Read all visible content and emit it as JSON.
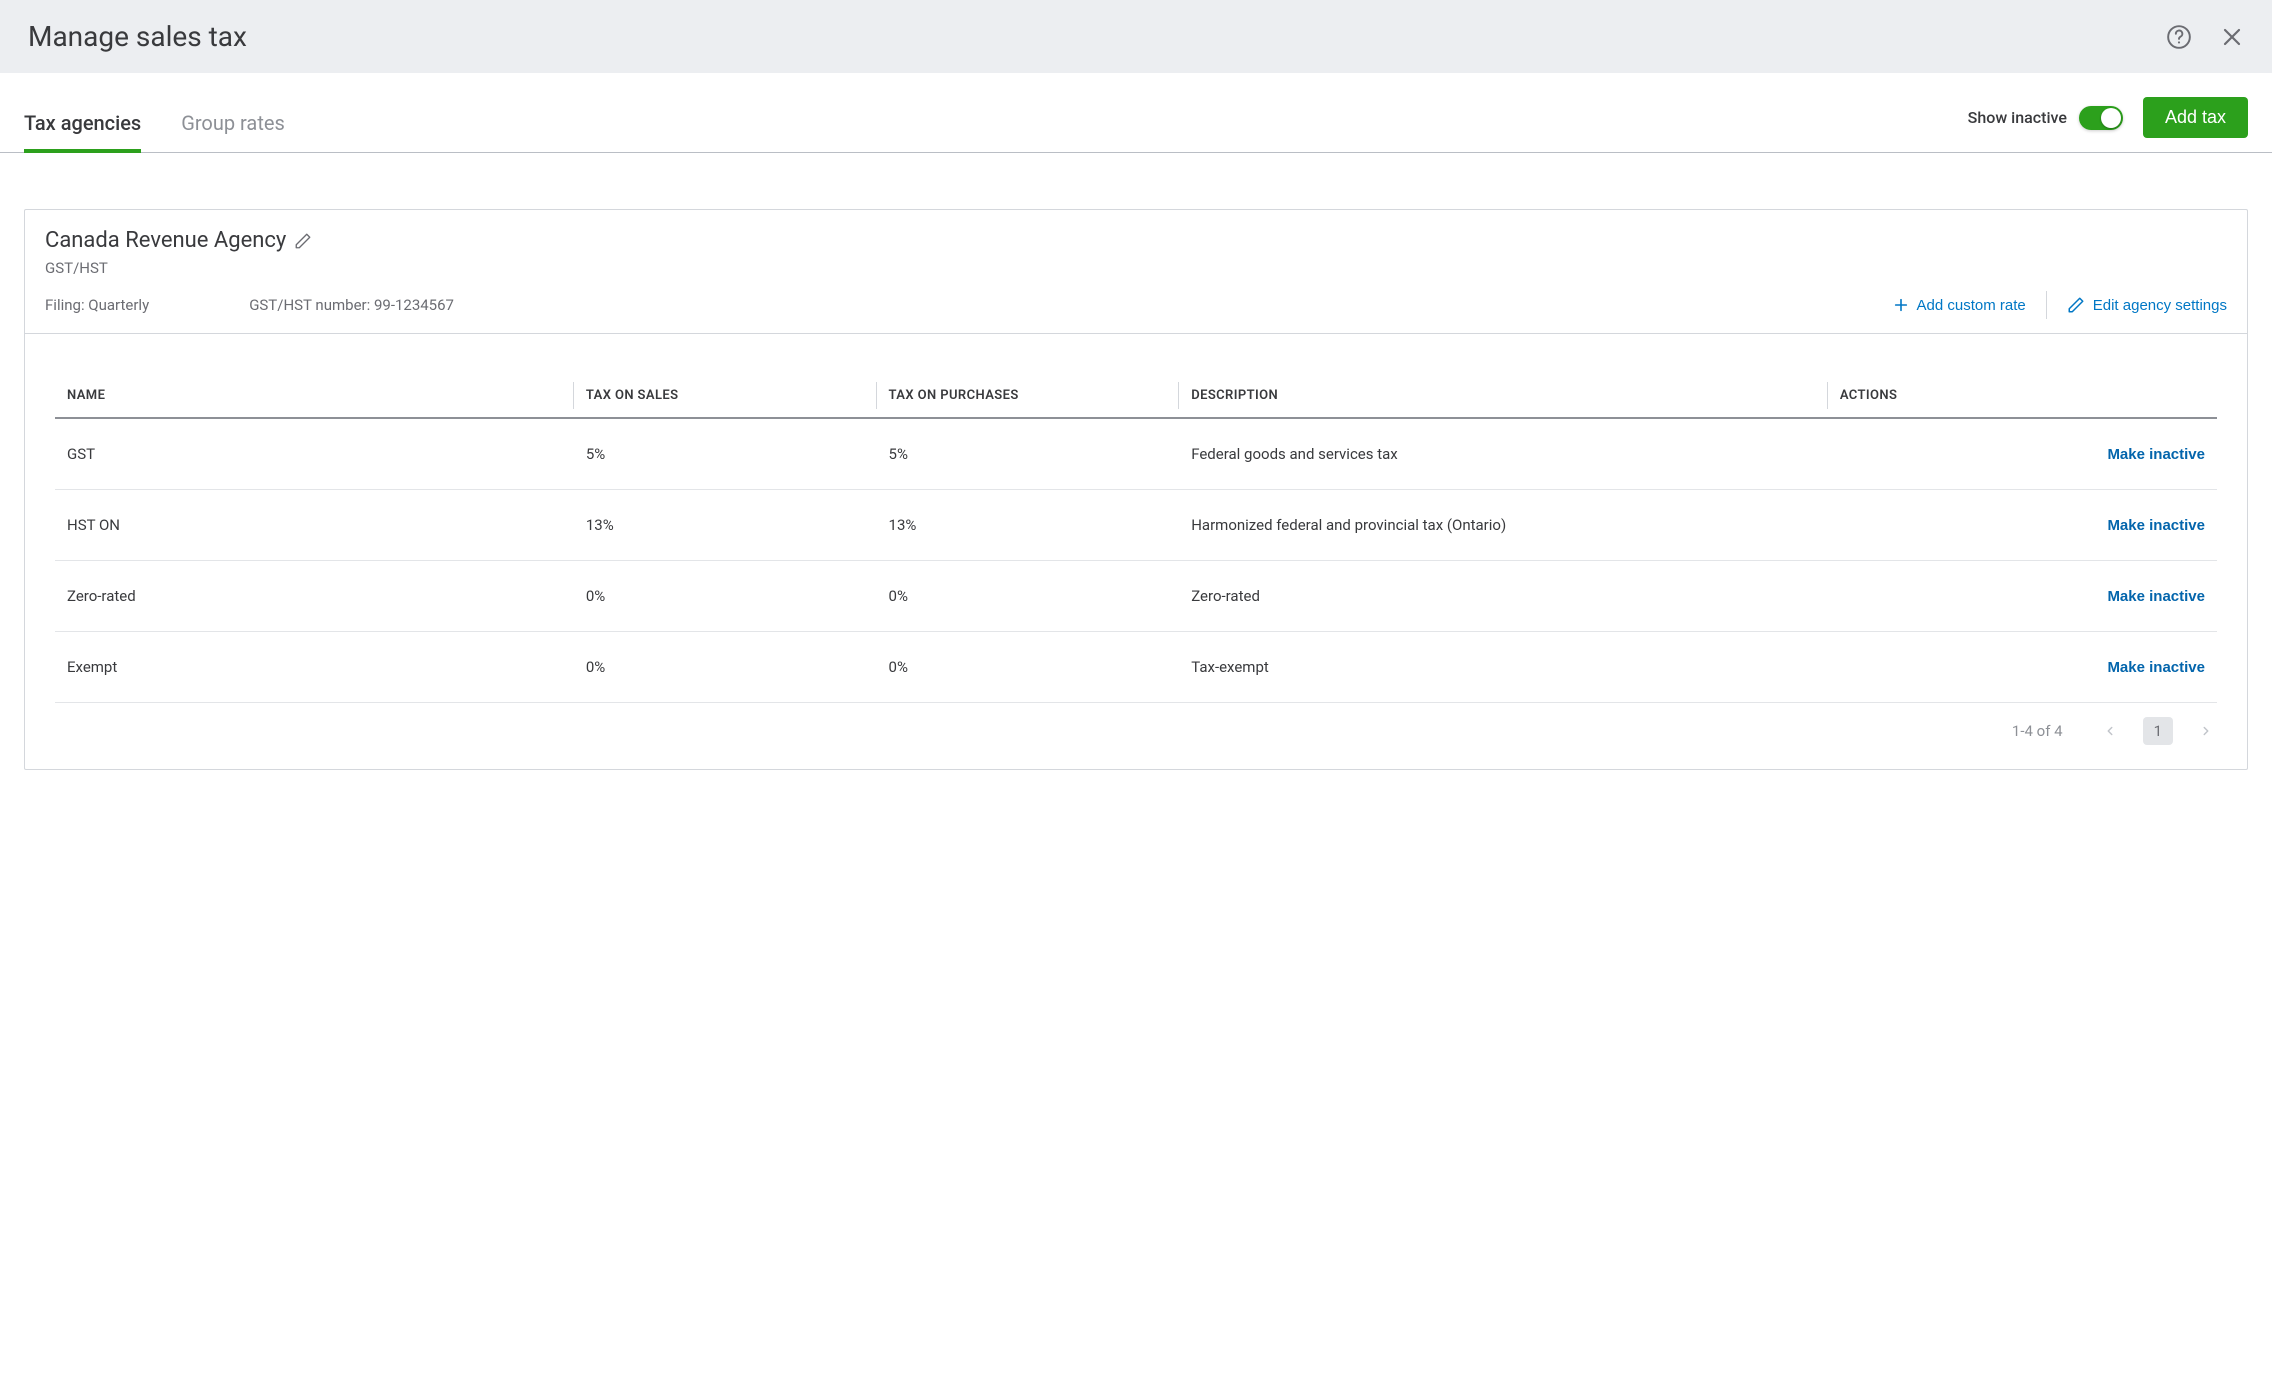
{
  "header": {
    "title": "Manage sales tax"
  },
  "tabs": {
    "agencies": "Tax agencies",
    "group_rates": "Group rates"
  },
  "toolbar": {
    "show_inactive_label": "Show inactive",
    "add_tax_label": "Add tax"
  },
  "agency": {
    "name": "Canada Revenue Agency",
    "subtitle": "GST/HST",
    "filing": "Filing: Quarterly",
    "number": "GST/HST number: 99-1234567",
    "add_custom_rate": "Add custom rate",
    "edit_settings": "Edit agency settings"
  },
  "table": {
    "columns": {
      "name": "NAME",
      "sales": "TAX ON SALES",
      "purchases": "TAX ON PURCHASES",
      "description": "DESCRIPTION",
      "actions": "ACTIONS"
    },
    "action_label": "Make inactive",
    "rows": [
      {
        "name": "GST",
        "sales": "5%",
        "purchases": "5%",
        "description": "Federal goods and services tax"
      },
      {
        "name": "HST ON",
        "sales": "13%",
        "purchases": "13%",
        "description": "Harmonized federal and provincial tax (Ontario)"
      },
      {
        "name": "Zero-rated",
        "sales": "0%",
        "purchases": "0%",
        "description": "Zero-rated"
      },
      {
        "name": "Exempt",
        "sales": "0%",
        "purchases": "0%",
        "description": "Tax-exempt"
      }
    ]
  },
  "pagination": {
    "range": "1-4 of 4",
    "current": "1"
  },
  "colors": {
    "accent_green": "#2ca01c",
    "link_blue": "#0077c5",
    "border": "#d4d7dc"
  }
}
